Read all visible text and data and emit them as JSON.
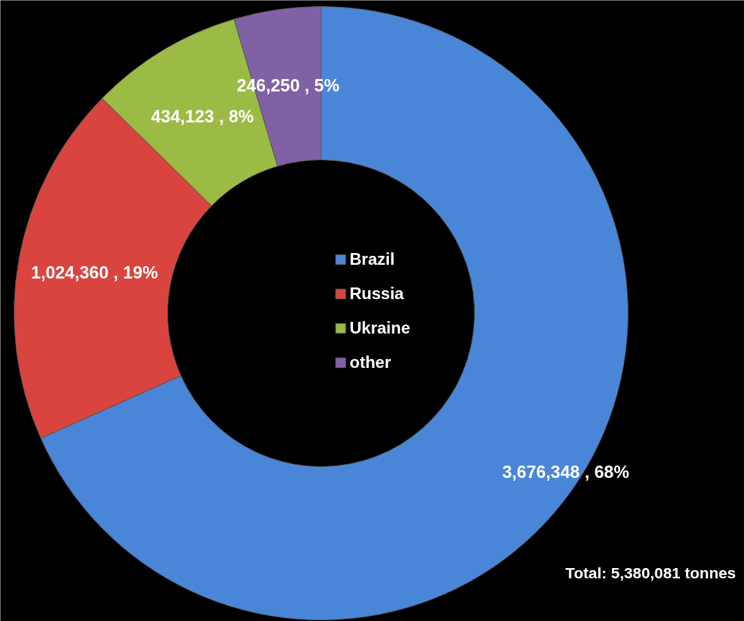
{
  "chart_data": {
    "type": "donut",
    "categories": [
      "Brazil",
      "Russia",
      "Ukraine",
      "other"
    ],
    "values": [
      3676348,
      1024360,
      434123,
      246250
    ],
    "colors": [
      "#4a86d8",
      "#d9443f",
      "#9bbb45",
      "#8161a6"
    ],
    "value_labels": [
      "3,676,348 , 68%",
      "1,024,360 , 19%",
      "434,123 , 8%",
      "246,250 , 5%"
    ],
    "legend": "center",
    "annotations": [
      "Total:  5,380,081 tonnes"
    ]
  }
}
